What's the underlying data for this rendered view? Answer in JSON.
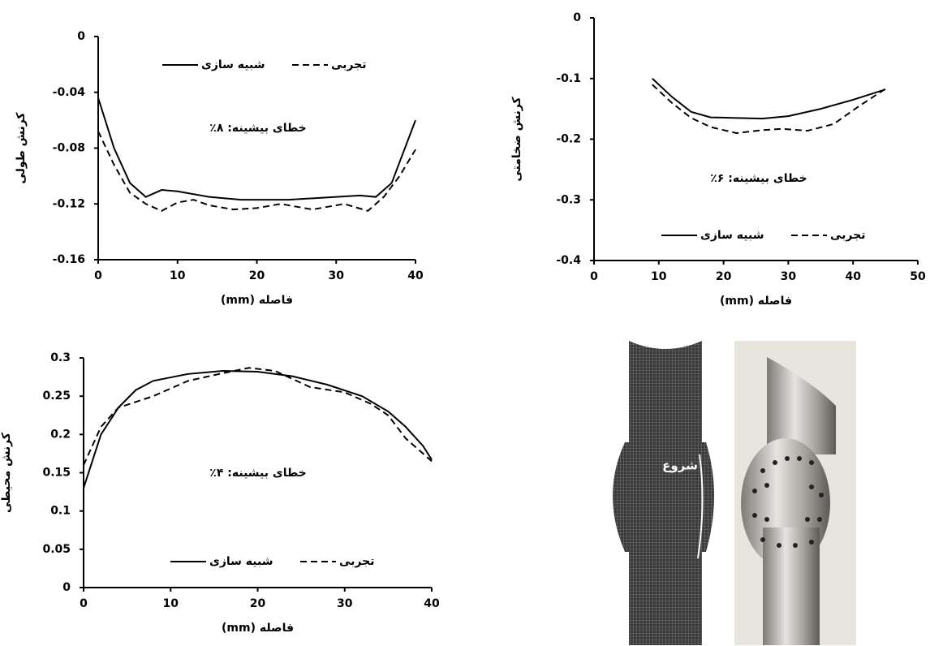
{
  "chart_data": [
    {
      "type": "line",
      "ylabel": "کرنش طولی",
      "xlabel": "فاصله (mm)",
      "annotation": "خطای بیشینه: ۸٪",
      "xlim": [
        0,
        40
      ],
      "xticks": [
        0,
        10,
        20,
        30,
        40
      ],
      "ylim": [
        -0.16,
        0
      ],
      "yticks": [
        0,
        -0.04,
        -0.08,
        -0.12,
        -0.16
      ],
      "legend": "top",
      "series": [
        {
          "name": "شبیه سازی",
          "color": "#000000",
          "dashed": false,
          "x": [
            0,
            2,
            4,
            6,
            8,
            10,
            14,
            18,
            24,
            30,
            33,
            35,
            37,
            40
          ],
          "values": [
            -0.044,
            -0.08,
            -0.105,
            -0.115,
            -0.11,
            -0.111,
            -0.115,
            -0.117,
            -0.117,
            -0.115,
            -0.114,
            -0.115,
            -0.105,
            -0.06
          ]
        },
        {
          "name": "تجربی",
          "color": "#000000",
          "dashed": true,
          "x": [
            0,
            2,
            4,
            6,
            8,
            10,
            12,
            14,
            17,
            20,
            23,
            27,
            31,
            34,
            36,
            38,
            40
          ],
          "values": [
            -0.068,
            -0.092,
            -0.112,
            -0.12,
            -0.125,
            -0.119,
            -0.117,
            -0.121,
            -0.124,
            -0.123,
            -0.12,
            -0.124,
            -0.12,
            -0.125,
            -0.115,
            -0.1,
            -0.081
          ]
        }
      ]
    },
    {
      "type": "line",
      "ylabel": "کرنش ضخامتی",
      "xlabel": "فاصله (mm)",
      "annotation": "خطای بیشینه: ۶٪",
      "xlim": [
        0,
        50
      ],
      "xticks": [
        0,
        10,
        20,
        30,
        40,
        50
      ],
      "ylim": [
        -0.4,
        0
      ],
      "yticks": [
        0,
        -0.1,
        -0.2,
        -0.3,
        -0.4
      ],
      "legend": "bottom",
      "series": [
        {
          "name": "شبیه سازی",
          "color": "#000000",
          "dashed": false,
          "x": [
            9,
            12,
            15,
            18,
            22,
            26,
            30,
            35,
            40,
            45
          ],
          "values": [
            -0.1,
            -0.13,
            -0.155,
            -0.164,
            -0.165,
            -0.166,
            -0.162,
            -0.15,
            -0.135,
            -0.118
          ]
        },
        {
          "name": "تجربی",
          "color": "#000000",
          "dashed": true,
          "x": [
            9,
            12,
            15,
            18,
            22,
            26,
            29,
            33,
            37,
            41,
            45
          ],
          "values": [
            -0.11,
            -0.14,
            -0.165,
            -0.18,
            -0.19,
            -0.185,
            -0.183,
            -0.186,
            -0.175,
            -0.145,
            -0.117
          ]
        }
      ]
    },
    {
      "type": "line",
      "ylabel": "کرنش محیطی",
      "xlabel": "فاصله (mm)",
      "annotation": "خطای بیشینه: ۴٪",
      "xlim": [
        0,
        40
      ],
      "xticks": [
        0,
        10,
        20,
        30,
        40
      ],
      "ylim": [
        0,
        0.3
      ],
      "yticks": [
        0,
        0.05,
        0.1,
        0.15,
        0.2,
        0.25,
        0.3
      ],
      "legend": "bottom",
      "series": [
        {
          "name": "شبیه سازی",
          "color": "#000000",
          "dashed": false,
          "x": [
            0,
            2,
            4,
            6,
            8,
            12,
            16,
            20,
            24,
            28,
            32,
            35,
            37,
            39,
            40
          ],
          "values": [
            0.13,
            0.2,
            0.235,
            0.258,
            0.27,
            0.279,
            0.283,
            0.282,
            0.276,
            0.265,
            0.25,
            0.23,
            0.21,
            0.185,
            0.167
          ]
        },
        {
          "name": "تجربی",
          "color": "#000000",
          "dashed": true,
          "x": [
            0,
            2,
            4,
            8,
            12,
            16,
            19,
            22,
            26,
            30,
            33,
            35,
            37,
            39,
            40
          ],
          "values": [
            0.16,
            0.21,
            0.235,
            0.25,
            0.27,
            0.28,
            0.287,
            0.283,
            0.262,
            0.255,
            0.24,
            0.225,
            0.195,
            0.175,
            0.165
          ]
        }
      ]
    }
  ],
  "image_annotation": "شروع"
}
